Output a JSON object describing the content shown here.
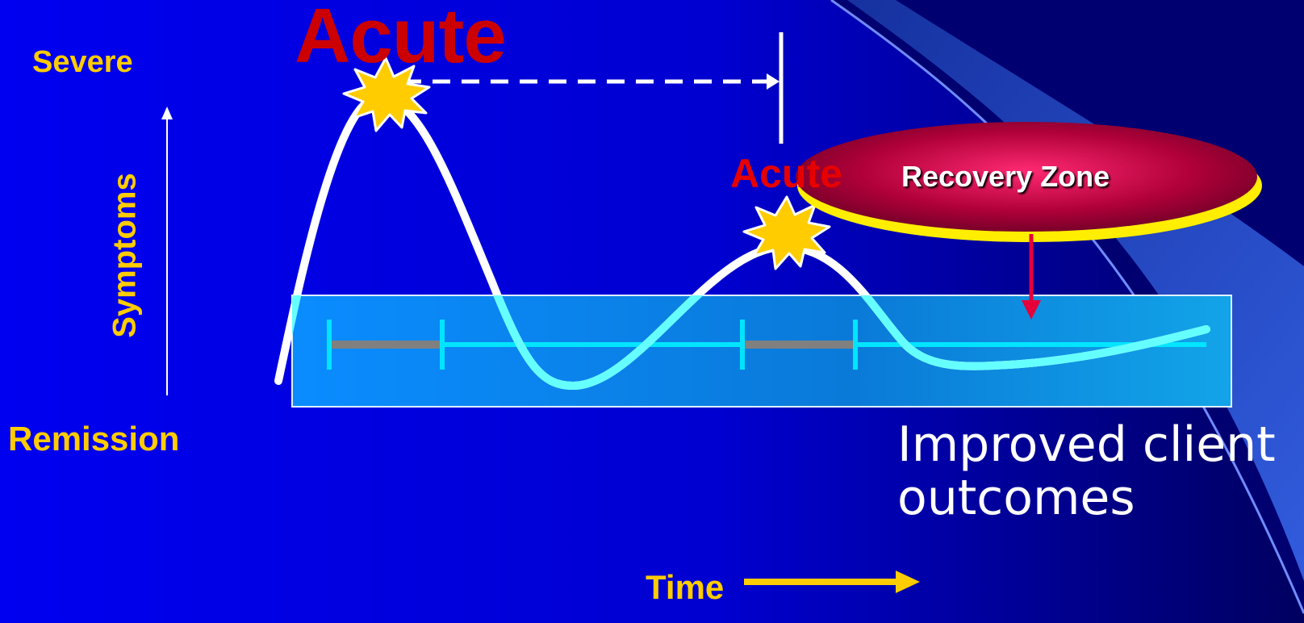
{
  "diagram": {
    "y_axis": {
      "top_label": "Severe",
      "bottom_label": "Remission",
      "title": "Symptoms"
    },
    "x_axis": {
      "title": "Time"
    },
    "episodes": {
      "first_label": "Acute",
      "second_label": "Acute"
    },
    "zone": {
      "label": "Recovery Zone"
    },
    "outcome": {
      "text": "Improved client outcomes"
    },
    "colors": {
      "background": "#0000e6",
      "label_yellow": "#ffcc00",
      "acute_red": "#cc0000",
      "curve_white": "#ffffff",
      "curve_cyan": "#66ffff",
      "timeline_cyan": "#00e5ff",
      "interval_gray": "#808080",
      "zone_crimson": "#b0003a",
      "zone_edge_yellow": "#ffee00",
      "arrow_red": "#e6003a"
    }
  }
}
